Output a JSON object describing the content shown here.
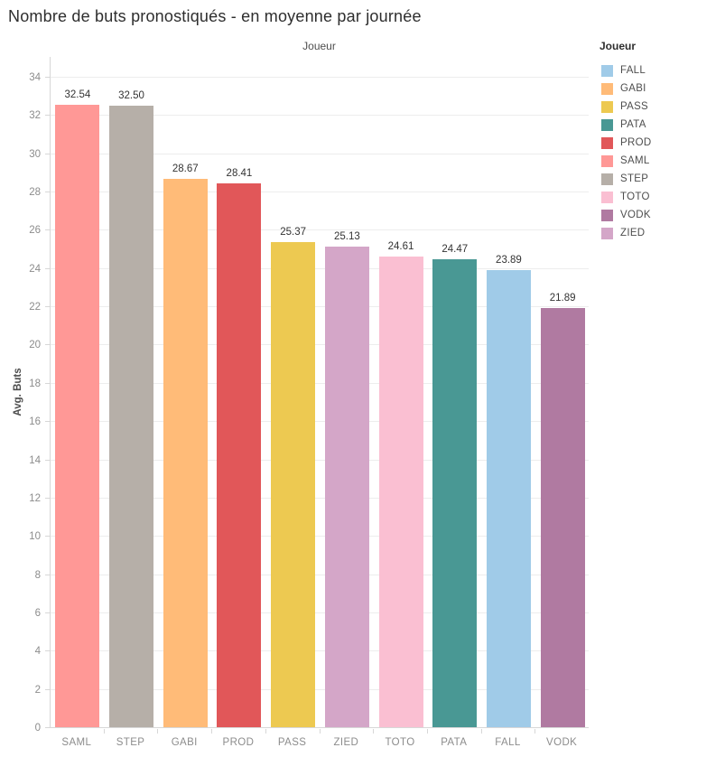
{
  "title": "Nombre de buts pronostiqués - en moyenne par journée",
  "column_header": "Joueur",
  "legend": {
    "title": "Joueur",
    "items": [
      {
        "label": "FALL",
        "color": "#A0CBE8"
      },
      {
        "label": "GABI",
        "color": "#FFBB78"
      },
      {
        "label": "PASS",
        "color": "#EDC951"
      },
      {
        "label": "PATA",
        "color": "#499894"
      },
      {
        "label": "PROD",
        "color": "#E15759"
      },
      {
        "label": "SAML",
        "color": "#FF9896"
      },
      {
        "label": "STEP",
        "color": "#B6AFA8"
      },
      {
        "label": "TOTO",
        "color": "#FABFD2"
      },
      {
        "label": "VODK",
        "color": "#B07AA1"
      },
      {
        "label": "ZIED",
        "color": "#D4A6C8"
      }
    ]
  },
  "chart_data": {
    "type": "bar",
    "title": "Nombre de buts pronostiqués - en moyenne par journée",
    "xlabel": "Joueur",
    "ylabel": "Avg. Buts",
    "ylim": [
      0,
      34
    ],
    "yticks": [
      0,
      2,
      4,
      6,
      8,
      10,
      12,
      14,
      16,
      18,
      20,
      22,
      24,
      26,
      28,
      30,
      32,
      34
    ],
    "grid": true,
    "legend_position": "right",
    "legend_title": "Joueur",
    "categories": [
      "SAML",
      "STEP",
      "GABI",
      "PROD",
      "PASS",
      "ZIED",
      "TOTO",
      "PATA",
      "FALL",
      "VODK"
    ],
    "values": [
      32.54,
      32.5,
      28.67,
      28.41,
      25.37,
      25.13,
      24.61,
      24.47,
      23.89,
      21.89
    ],
    "value_labels": [
      "32.54",
      "32.50",
      "28.67",
      "28.41",
      "25.37",
      "25.13",
      "24.61",
      "24.47",
      "23.89",
      "21.89"
    ],
    "series_colors": {
      "SAML": "#FF9896",
      "STEP": "#B6AFA8",
      "GABI": "#FFBB78",
      "PROD": "#E15759",
      "PASS": "#EDC951",
      "ZIED": "#D4A6C8",
      "TOTO": "#FABFD2",
      "PATA": "#499894",
      "FALL": "#A0CBE8",
      "VODK": "#B07AA1"
    }
  }
}
